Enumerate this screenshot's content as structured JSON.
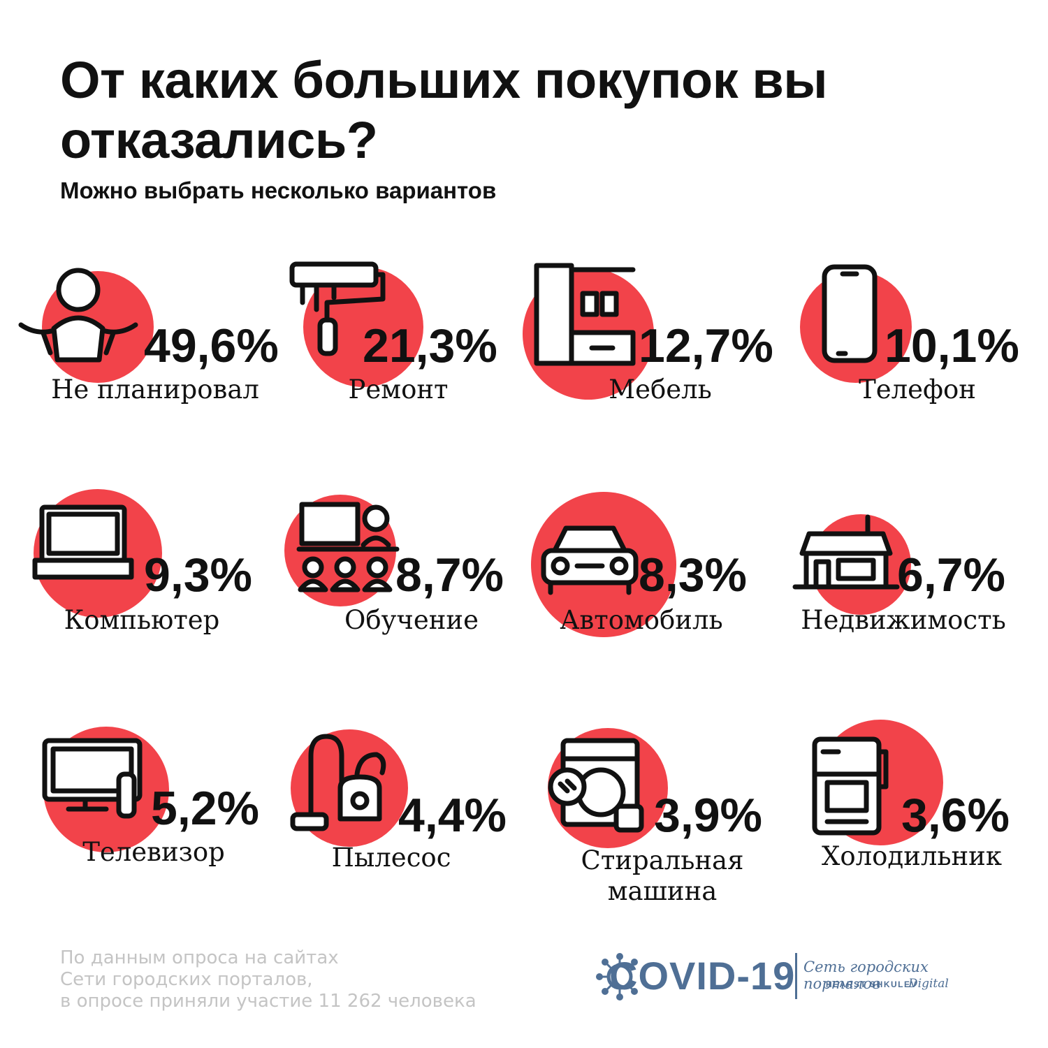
{
  "header": {
    "title": "От каких больших покупок вы отказались?",
    "subtitle": "Можно выбрать несколько вариантов"
  },
  "colors": {
    "circle": "#f2434a",
    "text": "#111111",
    "source_text": "#c4c4c4",
    "brand": "#4f6f95"
  },
  "chart_data": {
    "type": "bar",
    "title": "От каких больших покупок вы отказались?",
    "subtitle": "Можно выбрать несколько вариантов",
    "categories": [
      "Не планировал",
      "Ремонт",
      "Мебель",
      "Телефон",
      "Компьютер",
      "Обучение",
      "Автомобиль",
      "Недвижимость",
      "Телевизор",
      "Пылесос",
      "Стиральная машина",
      "Холодильник"
    ],
    "values": [
      49.6,
      21.3,
      12.7,
      10.1,
      9.3,
      8.7,
      8.3,
      6.7,
      5.2,
      4.4,
      3.9,
      3.6
    ],
    "value_labels": [
      "49,6%",
      "21,3%",
      "12,7%",
      "10,1%",
      "9,3%",
      "8,7%",
      "8,3%",
      "6,7%",
      "5,2%",
      "4,4%",
      "3,9%",
      "3,6%"
    ],
    "icons": [
      "shrug-icon",
      "paint-roller-icon",
      "furniture-icon",
      "phone-icon",
      "laptop-icon",
      "classroom-icon",
      "car-icon",
      "house-icon",
      "tv-icon",
      "vacuum-icon",
      "washing-machine-icon",
      "fridge-icon"
    ],
    "unit": "%"
  },
  "footer": {
    "source": [
      "По данным опроса на сайтах",
      "Сети городских порталов,",
      "в опросе приняли участие 11 262 человека"
    ],
    "logo_text": "COVID-19",
    "network_name": "Сеть городских порталов",
    "publisher": "HEARST SHKULEV",
    "publisher_suffix": "Digital"
  }
}
